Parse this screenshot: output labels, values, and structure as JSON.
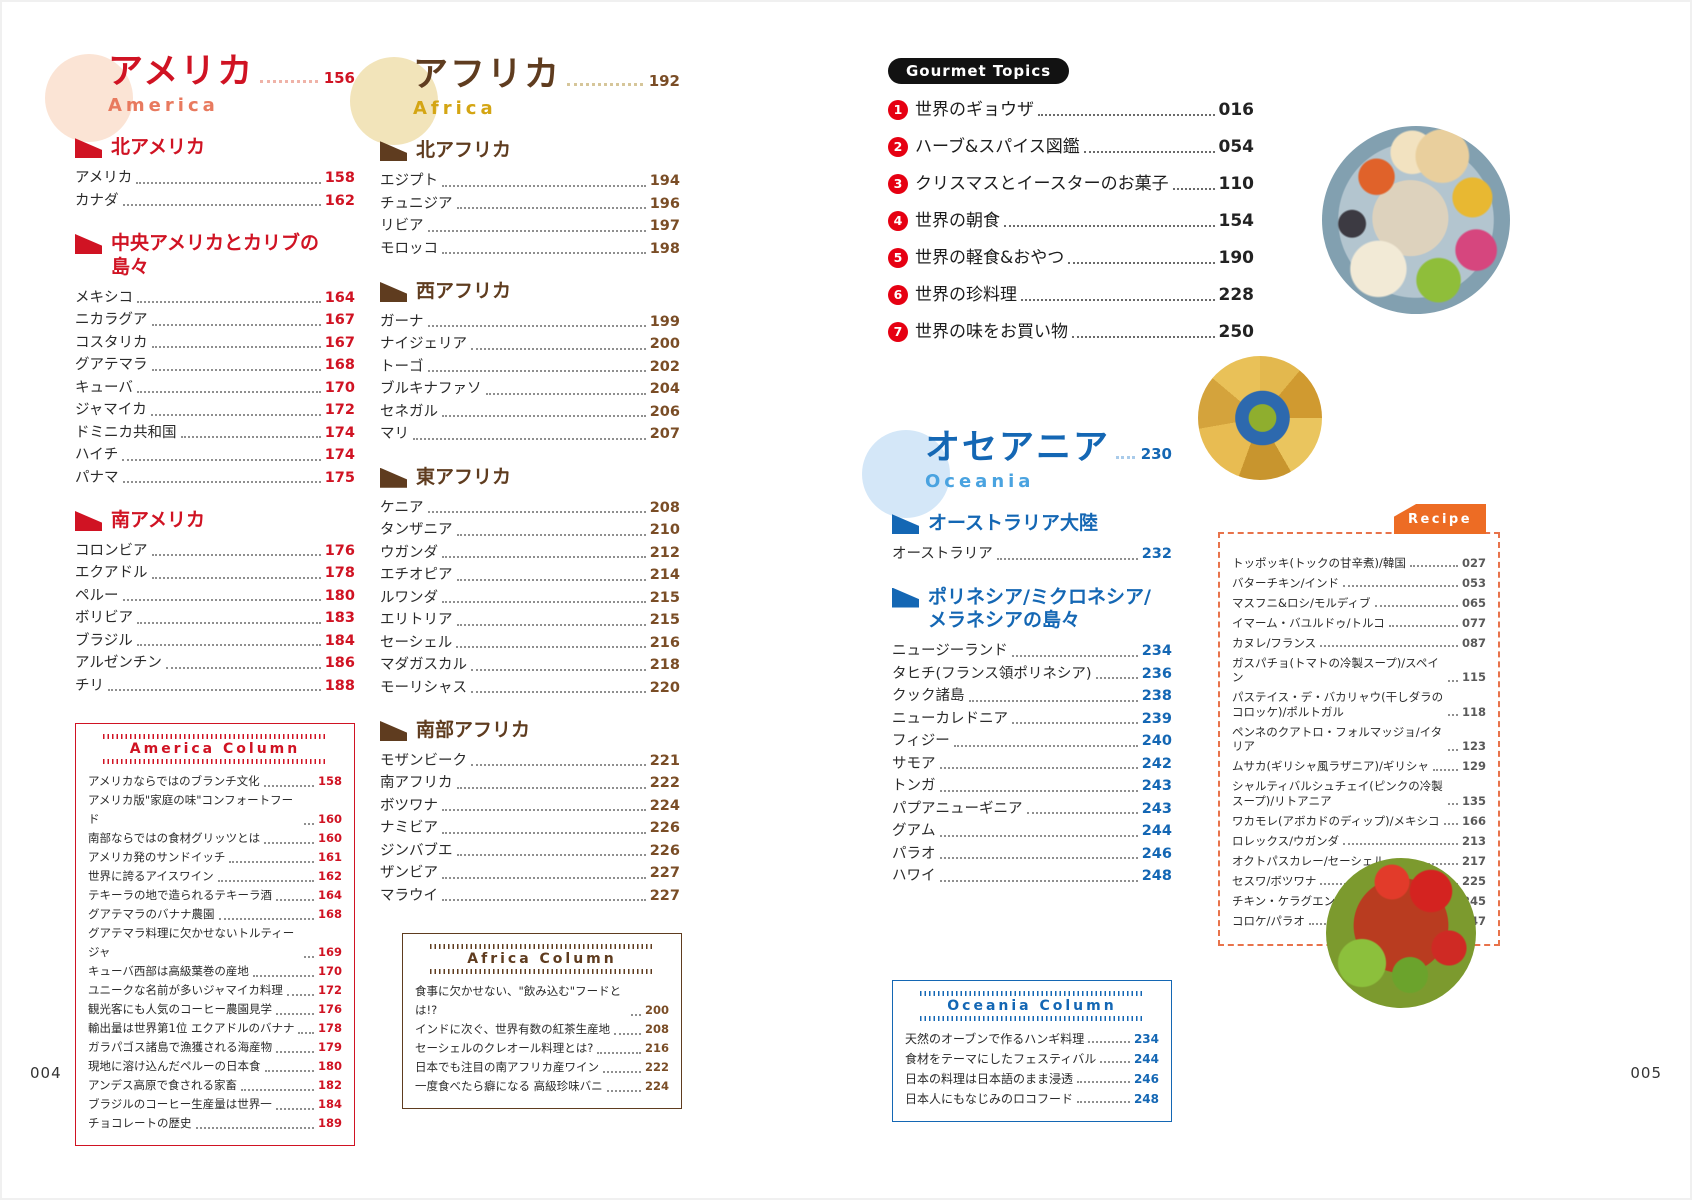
{
  "left_page": {
    "page_number": "004",
    "america": {
      "title": "アメリカ",
      "subtitle": "America",
      "page": "156",
      "subsections": [
        {
          "heading": "北アメリカ",
          "entries": [
            {
              "label": "アメリカ",
              "page": "158"
            },
            {
              "label": "カナダ",
              "page": "162"
            }
          ]
        },
        {
          "heading": "中央アメリカとカリブの島々",
          "entries": [
            {
              "label": "メキシコ",
              "page": "164"
            },
            {
              "label": "ニカラグア",
              "page": "167"
            },
            {
              "label": "コスタリカ",
              "page": "167"
            },
            {
              "label": "グアテマラ",
              "page": "168"
            },
            {
              "label": "キューバ",
              "page": "170"
            },
            {
              "label": "ジャマイカ",
              "page": "172"
            },
            {
              "label": "ドミニカ共和国",
              "page": "174"
            },
            {
              "label": "ハイチ",
              "page": "174"
            },
            {
              "label": "パナマ",
              "page": "175"
            }
          ]
        },
        {
          "heading": "南アメリカ",
          "entries": [
            {
              "label": "コロンビア",
              "page": "176"
            },
            {
              "label": "エクアドル",
              "page": "178"
            },
            {
              "label": "ペルー",
              "page": "180"
            },
            {
              "label": "ボリビア",
              "page": "183"
            },
            {
              "label": "ブラジル",
              "page": "184"
            },
            {
              "label": "アルゼンチン",
              "page": "186"
            },
            {
              "label": "チリ",
              "page": "188"
            }
          ]
        }
      ],
      "column": {
        "title": "America Column",
        "entries": [
          {
            "label": "アメリカならではのブランチ文化",
            "page": "158"
          },
          {
            "label": "アメリカ版\"家庭の味\"コンフォートフード",
            "page": "160"
          },
          {
            "label": "南部ならではの食材グリッツとは",
            "page": "160"
          },
          {
            "label": "アメリカ発のサンドイッチ",
            "page": "161"
          },
          {
            "label": "世界に誇るアイスワイン",
            "page": "162"
          },
          {
            "label": "テキーラの地で造られるテキーラ酒",
            "page": "164"
          },
          {
            "label": "グアテマラのバナナ農園",
            "page": "168"
          },
          {
            "label": "グアテマラ料理に欠かせないトルティージャ",
            "page": "169"
          },
          {
            "label": "キューバ西部は高級葉巻の産地",
            "page": "170"
          },
          {
            "label": "ユニークな名前が多いジャマイカ料理",
            "page": "172"
          },
          {
            "label": "観光客にも人気のコーヒー農園見学",
            "page": "176"
          },
          {
            "label": "輸出量は世界第1位 エクアドルのバナナ",
            "page": "178"
          },
          {
            "label": "ガラパゴス諸島で漁獲される海産物",
            "page": "179"
          },
          {
            "label": "現地に溶け込んだペルーの日本食",
            "page": "180"
          },
          {
            "label": "アンデス高原で食される家畜",
            "page": "182"
          },
          {
            "label": "ブラジルのコーヒー生産量は世界一",
            "page": "184"
          },
          {
            "label": "チョコレートの歴史",
            "page": "189"
          }
        ]
      }
    },
    "africa": {
      "title": "アフリカ",
      "subtitle": "Africa",
      "page": "192",
      "subsections": [
        {
          "heading": "北アフリカ",
          "entries": [
            {
              "label": "エジプト",
              "page": "194"
            },
            {
              "label": "チュニジア",
              "page": "196"
            },
            {
              "label": "リビア",
              "page": "197"
            },
            {
              "label": "モロッコ",
              "page": "198"
            }
          ]
        },
        {
          "heading": "西アフリカ",
          "entries": [
            {
              "label": "ガーナ",
              "page": "199"
            },
            {
              "label": "ナイジェリア",
              "page": "200"
            },
            {
              "label": "トーゴ",
              "page": "202"
            },
            {
              "label": "ブルキナファソ",
              "page": "204"
            },
            {
              "label": "セネガル",
              "page": "206"
            },
            {
              "label": "マリ",
              "page": "207"
            }
          ]
        },
        {
          "heading": "東アフリカ",
          "entries": [
            {
              "label": "ケニア",
              "page": "208"
            },
            {
              "label": "タンザニア",
              "page": "210"
            },
            {
              "label": "ウガンダ",
              "page": "212"
            },
            {
              "label": "エチオピア",
              "page": "214"
            },
            {
              "label": "ルワンダ",
              "page": "215"
            },
            {
              "label": "エリトリア",
              "page": "215"
            },
            {
              "label": "セーシェル",
              "page": "216"
            },
            {
              "label": "マダガスカル",
              "page": "218"
            },
            {
              "label": "モーリシャス",
              "page": "220"
            }
          ]
        },
        {
          "heading": "南部アフリカ",
          "entries": [
            {
              "label": "モザンビーク",
              "page": "221"
            },
            {
              "label": "南アフリカ",
              "page": "222"
            },
            {
              "label": "ボツワナ",
              "page": "224"
            },
            {
              "label": "ナミビア",
              "page": "226"
            },
            {
              "label": "ジンバブエ",
              "page": "226"
            },
            {
              "label": "ザンビア",
              "page": "227"
            },
            {
              "label": "マラウイ",
              "page": "227"
            }
          ]
        }
      ],
      "column": {
        "title": "Africa Column",
        "entries": [
          {
            "label": "食事に欠かせない、\"飲み込む\"フードとは!?",
            "page": "200"
          },
          {
            "label": "インドに次ぐ、世界有数の紅茶生産地",
            "page": "208"
          },
          {
            "label": "セーシェルのクレオール料理とは?",
            "page": "216"
          },
          {
            "label": "日本でも注目の南アフリカ産ワイン",
            "page": "222"
          },
          {
            "label": "一度食べたら癖になる 高級珍味バニ",
            "page": "224"
          }
        ]
      }
    }
  },
  "right_page": {
    "page_number": "005",
    "gourmet_topics": {
      "label": "Gourmet Topics",
      "entries": [
        {
          "num": "1",
          "label": "世界のギョウザ",
          "page": "016"
        },
        {
          "num": "2",
          "label": "ハーブ&スパイス図鑑",
          "page": "054"
        },
        {
          "num": "3",
          "label": "クリスマスとイースターのお菓子",
          "page": "110"
        },
        {
          "num": "4",
          "label": "世界の朝食",
          "page": "154"
        },
        {
          "num": "5",
          "label": "世界の軽食&おやつ",
          "page": "190"
        },
        {
          "num": "6",
          "label": "世界の珍料理",
          "page": "228"
        },
        {
          "num": "7",
          "label": "世界の味をお買い物",
          "page": "250"
        }
      ]
    },
    "oceania": {
      "title": "オセアニア",
      "subtitle": "Oceania",
      "page": "230",
      "subsections": [
        {
          "heading": "オーストラリア大陸",
          "entries": [
            {
              "label": "オーストラリア",
              "page": "232"
            }
          ]
        },
        {
          "heading": "ポリネシア/ミクロネシア/\nメラネシアの島々",
          "entries": [
            {
              "label": "ニュージーランド",
              "page": "234"
            },
            {
              "label": "タヒチ(フランス領ポリネシア)",
              "page": "236"
            },
            {
              "label": "クック諸島",
              "page": "238"
            },
            {
              "label": "ニューカレドニア",
              "page": "239"
            },
            {
              "label": "フィジー",
              "page": "240"
            },
            {
              "label": "サモア",
              "page": "242"
            },
            {
              "label": "トンガ",
              "page": "243"
            },
            {
              "label": "パプアニューギニア",
              "page": "243"
            },
            {
              "label": "グアム",
              "page": "244"
            },
            {
              "label": "パラオ",
              "page": "246"
            },
            {
              "label": "ハワイ",
              "page": "248"
            }
          ]
        }
      ],
      "column": {
        "title": "Oceania Column",
        "entries": [
          {
            "label": "天然のオーブンで作るハンギ料理",
            "page": "234"
          },
          {
            "label": "食材をテーマにしたフェスティバル",
            "page": "244"
          },
          {
            "label": "日本の料理は日本語のまま浸透",
            "page": "246"
          },
          {
            "label": "日本人にもなじみのロコフード",
            "page": "248"
          }
        ]
      }
    },
    "recipe": {
      "tag": "Recipe",
      "entries": [
        {
          "label": "トッポッキ(トックの甘辛煮)/韓国",
          "page": "027"
        },
        {
          "label": "バターチキン/インド",
          "page": "053"
        },
        {
          "label": "マスフニ&ロシ/モルディブ",
          "page": "065"
        },
        {
          "label": "イマーム・バユルドゥ/トルコ",
          "page": "077"
        },
        {
          "label": "カヌレ/フランス",
          "page": "087"
        },
        {
          "label": "ガスパチョ(トマトの冷製スープ)/スペイン",
          "page": "115"
        },
        {
          "label": "パステイス・デ・バカリャウ(干しダラのコロッケ)/ポルトガル",
          "page": "118"
        },
        {
          "label": "ペンネのクアトロ・フォルマッジョ/イタリア",
          "page": "123"
        },
        {
          "label": "ムサカ(ギリシャ風ラザニア)/ギリシャ",
          "page": "129"
        },
        {
          "label": "シャルティバルシュチェイ(ピンクの冷製スープ)/リトアニア",
          "page": "135"
        },
        {
          "label": "ワカモレ(アボカドのディップ)/メキシコ",
          "page": "166"
        },
        {
          "label": "ロレックス/ウガンダ",
          "page": "213"
        },
        {
          "label": "オクトパスカレー/セーシェル",
          "page": "217"
        },
        {
          "label": "セスワ/ボツワナ",
          "page": "225"
        },
        {
          "label": "チキン・ケラグエン/グアム",
          "page": "245"
        },
        {
          "label": "コロケ/パラオ",
          "page": "247"
        }
      ]
    },
    "photos": {
      "plate": "mezze-plate-photo",
      "nachos": "nacho-chips-photo",
      "chili": "chili-peppers-photo"
    }
  },
  "colors": {
    "america_red": "#d01323",
    "america_subtitle": "#e87a5f",
    "america_circle": "#fbe4d5",
    "africa_brown": "#5f3c1f",
    "africa_gold": "#d4a513",
    "africa_circle": "#f2e4ba",
    "oceania_blue": "#1467b4",
    "oceania_subtitle": "#4aa3e0",
    "oceania_circle": "#d4e7f8",
    "recipe_orange": "#ed6c24",
    "topic_badge_red": "#e60012",
    "pill_black": "#121212"
  }
}
